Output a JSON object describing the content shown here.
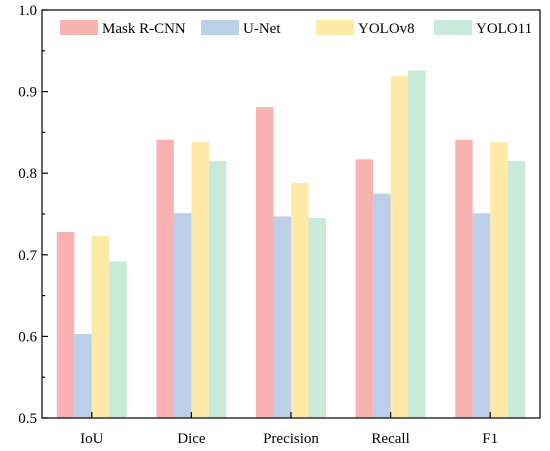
{
  "chart_data": {
    "type": "bar",
    "title": "",
    "xlabel": "",
    "ylabel": "",
    "categories": [
      "IoU",
      "Dice",
      "Precision",
      "Recall",
      "F1"
    ],
    "series": [
      {
        "name": "Mask R-CNN",
        "color": "#f9b3b3",
        "values": [
          0.728,
          0.841,
          0.881,
          0.817,
          0.841
        ]
      },
      {
        "name": "U-Net",
        "color": "#bccfe9",
        "values": [
          0.603,
          0.751,
          0.747,
          0.775,
          0.751
        ]
      },
      {
        "name": "YOLOv8",
        "color": "#fdeaa8",
        "values": [
          0.723,
          0.838,
          0.788,
          0.919,
          0.838
        ]
      },
      {
        "name": "YOLO11",
        "color": "#c7ebd8",
        "values": [
          0.692,
          0.815,
          0.745,
          0.926,
          0.815
        ]
      }
    ],
    "ylim": [
      0.5,
      1.0
    ],
    "yticks": [
      "0.5",
      "0.6",
      "0.7",
      "0.8",
      "0.9",
      "1.0"
    ],
    "grid": false,
    "legend_position": "top"
  }
}
